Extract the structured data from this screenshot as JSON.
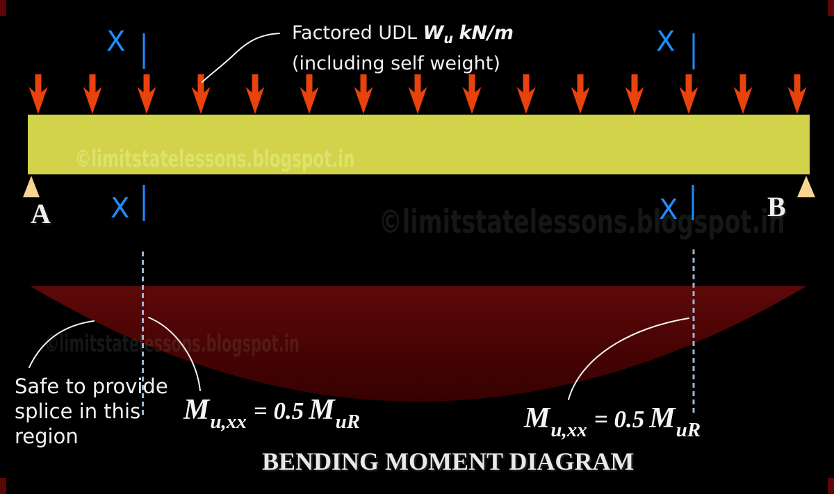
{
  "labels": {
    "section_mark": "X",
    "support_left": "A",
    "support_right": "B",
    "udl_prefix": "Factored UDL",
    "udl_w": "W",
    "udl_w_sub": "u",
    "udl_units": "kN/m",
    "udl_line2": "(including self weight)",
    "splice_line1": "Safe to provide",
    "splice_line2": "splice in this",
    "splice_line3": "region",
    "bmd_title": "BENDING MOMENT DIAGRAM"
  },
  "equation": {
    "m1": "M",
    "sub1": "u,xx",
    "mid": "= 0.5",
    "m2": "M",
    "sub2": "uR"
  },
  "watermark": {
    "text": "©limitstatelessons.blogspot.in"
  },
  "udl": {
    "arrow_count": 15
  },
  "colors": {
    "background": "#000000",
    "beam": "#d2d34b",
    "arrow": "#e8420d",
    "section_blue": "#1f8cff",
    "support": "#f7d492",
    "moment_fill": "#470303",
    "dashed_line": "#9db6d6",
    "text": "#f2f2f2",
    "watermark_on_dark": "rgba(150,160,140,0.14)",
    "watermark_on_beam": "rgba(235,245,150,0.45)"
  }
}
